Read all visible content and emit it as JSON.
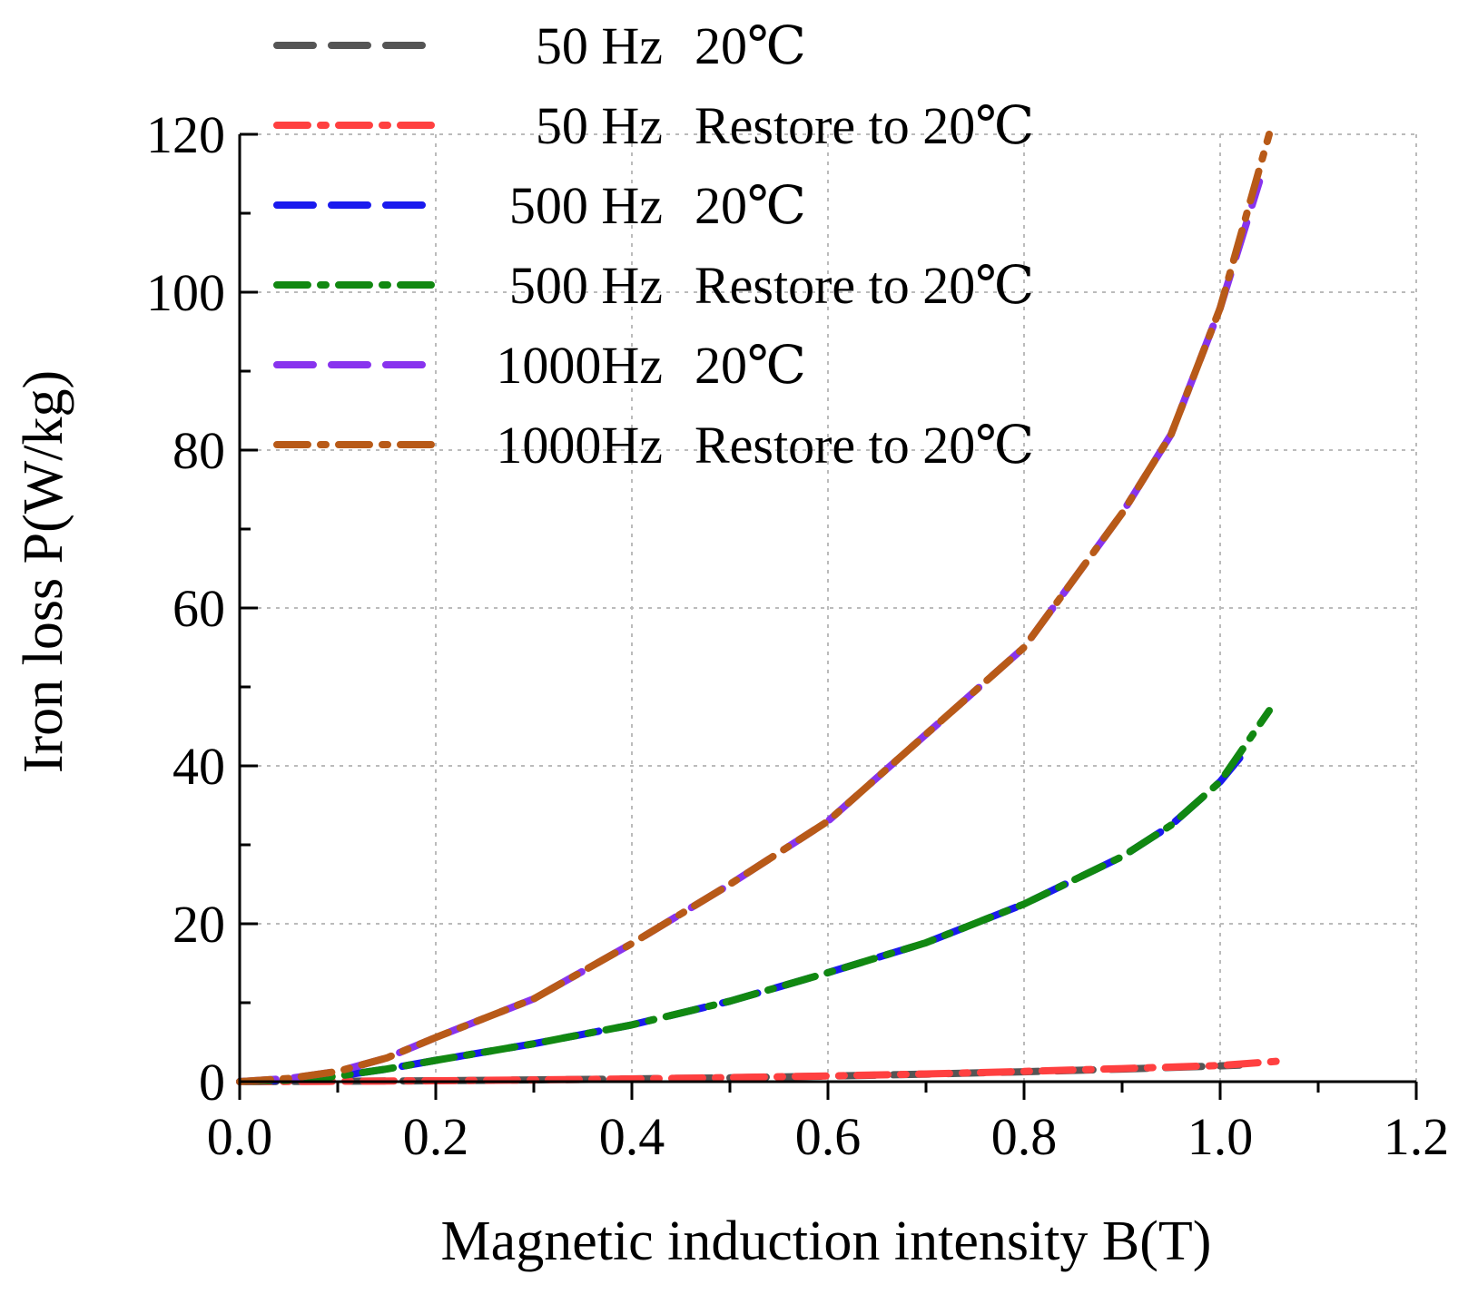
{
  "chart_data": {
    "type": "line",
    "title": "",
    "xlabel": "Magnetic induction intensity B(T)",
    "ylabel": "Iron loss P(W/kg)",
    "xlim": [
      0.0,
      1.2
    ],
    "ylim": [
      0,
      120
    ],
    "xticks": [
      0.0,
      0.2,
      0.4,
      0.6,
      0.8,
      1.0,
      1.2
    ],
    "xtick_labels": [
      "0.0",
      "0.2",
      "0.4",
      "0.6",
      "0.8",
      "1.0",
      "1.2"
    ],
    "yticks": [
      0,
      20,
      40,
      60,
      80,
      100,
      120
    ],
    "ytick_labels": [
      "0",
      "20",
      "40",
      "60",
      "80",
      "100",
      "120"
    ],
    "grid": true,
    "legend_position": "top-left",
    "series": [
      {
        "name": "50  Hz  20℃",
        "freq_label": "50  Hz",
        "cond_label": "20℃",
        "color": "#555555",
        "style": "dash",
        "x": [
          0.0,
          0.1,
          0.2,
          0.3,
          0.4,
          0.5,
          0.6,
          0.7,
          0.8,
          0.9,
          1.0,
          1.02
        ],
        "y": [
          0.0,
          0.05,
          0.12,
          0.22,
          0.35,
          0.5,
          0.7,
          0.95,
          1.25,
          1.6,
          2.0,
          2.1
        ]
      },
      {
        "name": "50  Hz  Restore to 20℃",
        "freq_label": "50  Hz",
        "cond_label": "Restore to 20℃",
        "color": "#ff4040",
        "style": "dashdot",
        "x": [
          0.0,
          0.1,
          0.2,
          0.3,
          0.4,
          0.5,
          0.6,
          0.7,
          0.8,
          0.9,
          1.0,
          1.06
        ],
        "y": [
          0.0,
          0.05,
          0.12,
          0.22,
          0.35,
          0.52,
          0.72,
          0.98,
          1.3,
          1.65,
          2.05,
          2.6
        ]
      },
      {
        "name": "500 Hz  20℃",
        "freq_label": "500 Hz",
        "cond_label": "20℃",
        "color": "#1a1aee",
        "style": "dash",
        "x": [
          0.0,
          0.05,
          0.1,
          0.15,
          0.2,
          0.3,
          0.4,
          0.5,
          0.6,
          0.7,
          0.8,
          0.9,
          0.95,
          1.0,
          1.02
        ],
        "y": [
          0.0,
          0.2,
          0.7,
          1.6,
          2.7,
          4.8,
          7.2,
          10.2,
          13.8,
          17.6,
          22.5,
          28.5,
          32.5,
          38.0,
          41.0
        ]
      },
      {
        "name": "500 Hz  Restore to 20℃",
        "freq_label": "500 Hz",
        "cond_label": "Restore to 20℃",
        "color": "#118811",
        "style": "dashdot",
        "x": [
          0.0,
          0.05,
          0.1,
          0.15,
          0.2,
          0.3,
          0.4,
          0.5,
          0.6,
          0.7,
          0.8,
          0.9,
          0.95,
          1.0,
          1.05
        ],
        "y": [
          0.0,
          0.2,
          0.7,
          1.6,
          2.7,
          4.8,
          7.2,
          10.2,
          13.8,
          17.6,
          22.5,
          28.5,
          32.5,
          38.0,
          47.0
        ]
      },
      {
        "name": "1000Hz  20℃",
        "freq_label": "1000Hz",
        "cond_label": "20℃",
        "color": "#8833ee",
        "style": "dash",
        "x": [
          0.0,
          0.05,
          0.1,
          0.15,
          0.2,
          0.3,
          0.4,
          0.5,
          0.6,
          0.7,
          0.8,
          0.9,
          0.95,
          1.0,
          1.04
        ],
        "y": [
          0.0,
          0.4,
          1.3,
          3.0,
          5.6,
          10.5,
          17.5,
          25.0,
          33.0,
          44.0,
          55.0,
          72.0,
          82.0,
          98.0,
          114.0
        ]
      },
      {
        "name": "1000Hz  Restore to 20℃",
        "freq_label": "1000Hz",
        "cond_label": "Restore to 20℃",
        "color": "#b85a18",
        "style": "dashdot",
        "x": [
          0.0,
          0.05,
          0.1,
          0.15,
          0.2,
          0.3,
          0.4,
          0.5,
          0.6,
          0.7,
          0.8,
          0.9,
          0.95,
          1.0,
          1.05
        ],
        "y": [
          0.0,
          0.4,
          1.3,
          3.0,
          5.6,
          10.5,
          17.5,
          25.0,
          33.0,
          44.0,
          55.0,
          72.0,
          82.0,
          98.0,
          120.0
        ]
      }
    ]
  }
}
